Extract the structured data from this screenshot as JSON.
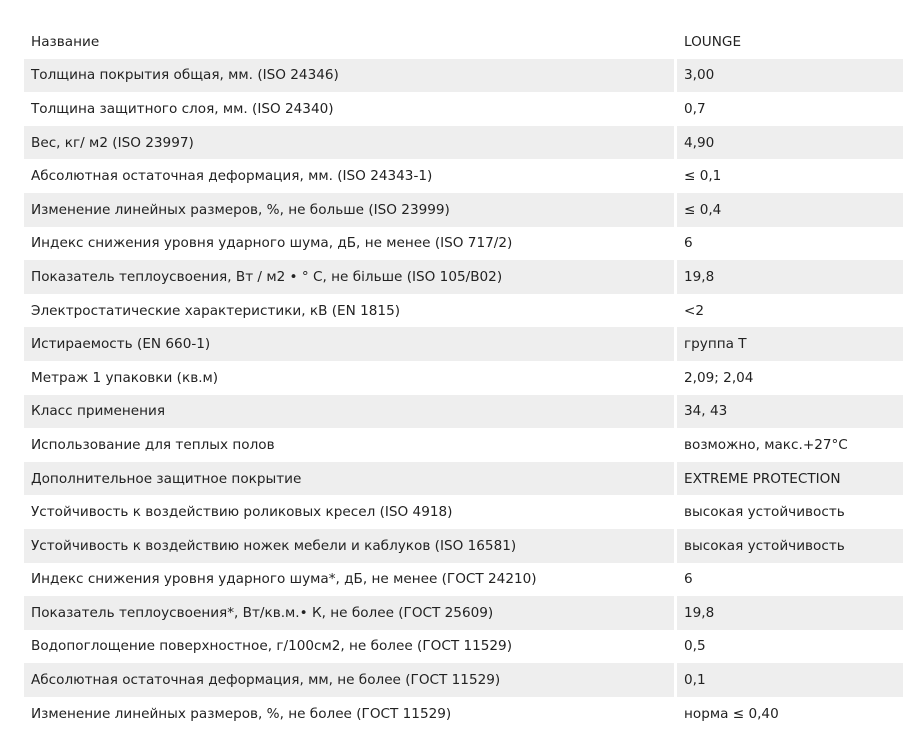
{
  "rows": [
    {
      "label": "Название",
      "value": "LOUNGE"
    },
    {
      "label": "Толщина покрытия общая, мм. (ISO 24346)",
      "value": "3,00"
    },
    {
      "label": "Толщина защитного слоя, мм. (ISO 24340)",
      "value": "0,7"
    },
    {
      "label": "Вес, кг/ м2 (ISO 23997)",
      "value": "4,90"
    },
    {
      "label": "Абсолютная остаточная деформация, мм. (ISO 24343-1)",
      "value": "≤ 0,1"
    },
    {
      "label": "Изменение линейных размеров, %, не больше (ISO 23999)",
      "value": "≤ 0,4"
    },
    {
      "label": "Индекс снижения уровня ударного шума, дБ, не менее (ISO 717/2)",
      "value": "6"
    },
    {
      "label": "Показатель теплоусвоения, Вт / м2 • ° С, не більше (ISO 105/B02)",
      "value": "19,8"
    },
    {
      "label": "Электростатические характеристики, кВ (EN 1815)",
      "value": "<2"
    },
    {
      "label": "Истираемость (EN 660-1)",
      "value": "группа Т"
    },
    {
      "label": "Метраж 1 упаковки (кв.м)",
      "value": "2,09; 2,04"
    },
    {
      "label": "Класс применения",
      "value": "34, 43"
    },
    {
      "label": "Использование для теплых полов",
      "value": "возможно, макс.+27°C"
    },
    {
      "label": "Дополнительное защитное покрытие",
      "value": "EXTREME PROTECTION"
    },
    {
      "label": "Устойчивость к воздействию роликовых кресел (ISO 4918)",
      "value": "высокая устойчивость"
    },
    {
      "label": "Устойчивость к воздействию ножек мебели и каблуков (ISO 16581)",
      "value": "высокая устойчивость"
    },
    {
      "label": "Индекс снижения уровня ударного шума*, дБ, не менее (ГОСТ 24210)",
      "value": "6"
    },
    {
      "label": "Показатель теплоусвоения*, Вт/кв.м.• К, не более (ГОСТ 25609)",
      "value": "19,8"
    },
    {
      "label": "Водопоглощение поверхностное, г/100см2, не более (ГОСТ 11529)",
      "value": "0,5"
    },
    {
      "label": "Абсолютная остаточная деформация, мм, не более (ГОСТ 11529)",
      "value": "0,1"
    },
    {
      "label": "Изменение линейных размеров, %, не более (ГОСТ 11529)",
      "value": "норма ≤ 0,40"
    }
  ]
}
